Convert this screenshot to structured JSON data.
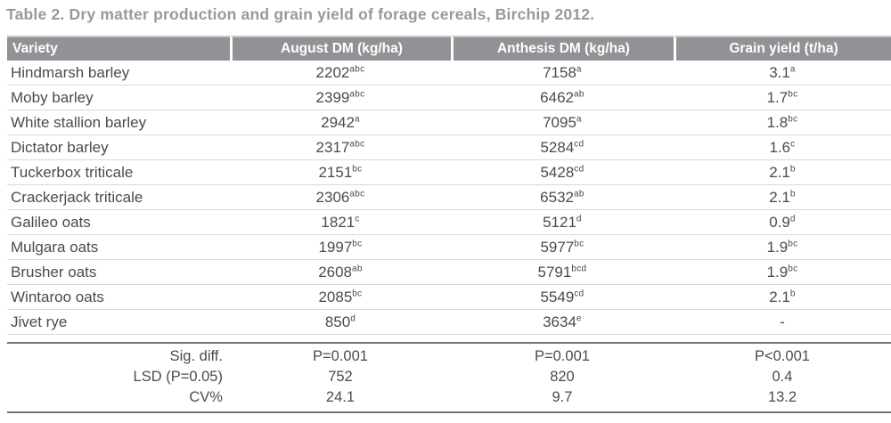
{
  "title": "Table 2. Dry matter production and grain yield of forage cereals, Birchip 2012.",
  "colors": {
    "header_bg": "#909295",
    "header_text": "#ffffff",
    "body_text": "#4a4b4d",
    "title_text": "#97999c",
    "row_line": "#d8d9da",
    "footer_line": "#737477"
  },
  "table": {
    "columns": [
      "Variety",
      "August DM (kg/ha)",
      "Anthesis DM (kg/ha)",
      "Grain yield (t/ha)"
    ],
    "rows": [
      {
        "variety": "Hindmarsh barley",
        "august": "2202",
        "august_sup": "abc",
        "anthesis": "7158",
        "anthesis_sup": "a",
        "grain": "3.1",
        "grain_sup": "a"
      },
      {
        "variety": "Moby barley",
        "august": "2399",
        "august_sup": "abc",
        "anthesis": "6462",
        "anthesis_sup": "ab",
        "grain": "1.7",
        "grain_sup": "bc"
      },
      {
        "variety": "White stallion barley",
        "august": "2942",
        "august_sup": "a",
        "anthesis": "7095",
        "anthesis_sup": "a",
        "grain": "1.8",
        "grain_sup": "bc"
      },
      {
        "variety": "Dictator barley",
        "august": "2317",
        "august_sup": "abc",
        "anthesis": "5284",
        "anthesis_sup": "cd",
        "grain": "1.6",
        "grain_sup": "c"
      },
      {
        "variety": "Tuckerbox triticale",
        "august": "2151",
        "august_sup": "bc",
        "anthesis": "5428",
        "anthesis_sup": "cd",
        "grain": "2.1",
        "grain_sup": "b"
      },
      {
        "variety": "Crackerjack triticale",
        "august": "2306",
        "august_sup": "abc",
        "anthesis": "6532",
        "anthesis_sup": "ab",
        "grain": "2.1",
        "grain_sup": "b"
      },
      {
        "variety": "Galileo oats",
        "august": "1821",
        "august_sup": "c",
        "anthesis": "5121",
        "anthesis_sup": "d",
        "grain": "0.9",
        "grain_sup": "d"
      },
      {
        "variety": "Mulgara oats",
        "august": "1997",
        "august_sup": "bc",
        "anthesis": "5977",
        "anthesis_sup": "bc",
        "grain": "1.9",
        "grain_sup": "bc"
      },
      {
        "variety": "Brusher oats",
        "august": "2608",
        "august_sup": "ab",
        "anthesis": "5791",
        "anthesis_sup": "bcd",
        "grain": "1.9",
        "grain_sup": "bc"
      },
      {
        "variety": "Wintaroo oats",
        "august": "2085",
        "august_sup": "bc",
        "anthesis": "5549",
        "anthesis_sup": "cd",
        "grain": "2.1",
        "grain_sup": "b"
      },
      {
        "variety": "Jivet rye",
        "august": "850",
        "august_sup": "d",
        "anthesis": "3634",
        "anthesis_sup": "e",
        "grain": "-",
        "grain_sup": ""
      }
    ],
    "footer_rows": [
      {
        "label": "Sig. diff.",
        "values": [
          "P=0.001",
          "P=0.001",
          "P<0.001"
        ]
      },
      {
        "label": "LSD (P=0.05)",
        "values": [
          "752",
          "820",
          "0.4"
        ]
      },
      {
        "label": "CV%",
        "values": [
          "24.1",
          "9.7",
          "13.2"
        ]
      }
    ]
  }
}
